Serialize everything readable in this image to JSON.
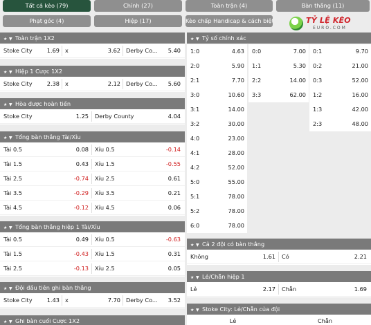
{
  "tabs": [
    {
      "label": "Tất cả kèo (79)",
      "active": true
    },
    {
      "label": "Chính (27)"
    },
    {
      "label": "Toàn trận (4)"
    },
    {
      "label": "Bàn thắng (11)"
    },
    {
      "label": "Phạt góc (4)"
    },
    {
      "label": "Hiệp (17)"
    },
    {
      "label": "Kèo chấp Handicap & cách biệt (3)"
    }
  ],
  "logo": {
    "name": "TỶ LỆ KÈO",
    "sub": "EURO.COM"
  },
  "left": {
    "fulltime_1x2": {
      "title": "Toàn trận 1X2",
      "home": "Stoke City",
      "home_odds": "1.69",
      "draw": "x",
      "draw_odds": "3.62",
      "away": "Derby Co...",
      "away_odds": "5.40"
    },
    "half1_1x2": {
      "title": "Hiệp 1 Cược 1X2",
      "home": "Stoke City",
      "home_odds": "2.38",
      "draw": "x",
      "draw_odds": "2.12",
      "away": "Derby Co...",
      "away_odds": "5.60"
    },
    "dnb": {
      "title": "Hòa được hoàn tiền",
      "home": "Stoke City",
      "home_odds": "1.25",
      "away": "Derby County",
      "away_odds": "4.04"
    },
    "total_goals": {
      "title": "Tổng bàn thắng Tài/Xỉu",
      "rows": [
        {
          "over": "Tài 0.5",
          "ov": "0.08",
          "under": "Xỉu 0.5",
          "uv": "-0.14"
        },
        {
          "over": "Tài 1.5",
          "ov": "0.43",
          "under": "Xỉu 1.5",
          "uv": "-0.55"
        },
        {
          "over": "Tài 2.5",
          "ov": "-0.74",
          "under": "Xỉu 2.5",
          "uv": "0.61"
        },
        {
          "over": "Tài 3.5",
          "ov": "-0.29",
          "under": "Xỉu 3.5",
          "uv": "0.21"
        },
        {
          "over": "Tài 4.5",
          "ov": "-0.12",
          "under": "Xỉu 4.5",
          "uv": "0.06"
        }
      ]
    },
    "total_goals_h1": {
      "title": "Tổng bàn thắng hiệp 1 Tài/Xỉu",
      "rows": [
        {
          "over": "Tài 0.5",
          "ov": "0.49",
          "under": "Xỉu 0.5",
          "uv": "-0.63"
        },
        {
          "over": "Tài 1.5",
          "ov": "-0.43",
          "under": "Xỉu 1.5",
          "uv": "0.31"
        },
        {
          "over": "Tài 2.5",
          "ov": "-0.13",
          "under": "Xỉu 2.5",
          "uv": "0.05"
        }
      ]
    },
    "first_goal": {
      "title": "Đội đầu tiên ghi bàn thắng",
      "home": "Stoke City",
      "home_odds": "1.43",
      "draw": "x",
      "draw_odds": "7.70",
      "away": "Derby Co...",
      "away_odds": "3.52"
    },
    "last_goal": {
      "title": "Ghi bàn cuối Cược 1X2"
    }
  },
  "right": {
    "correct_score": {
      "title": "Tỷ số chính xác",
      "col1": [
        {
          "s": "1:0",
          "v": "4.63"
        },
        {
          "s": "2:0",
          "v": "5.90"
        },
        {
          "s": "2:1",
          "v": "7.70"
        },
        {
          "s": "3:0",
          "v": "10.60"
        },
        {
          "s": "3:1",
          "v": "14.00"
        },
        {
          "s": "3:2",
          "v": "30.00"
        },
        {
          "s": "4:0",
          "v": "23.00"
        },
        {
          "s": "4:1",
          "v": "28.00"
        },
        {
          "s": "4:2",
          "v": "52.00"
        },
        {
          "s": "5:0",
          "v": "55.00"
        },
        {
          "s": "5:1",
          "v": "78.00"
        },
        {
          "s": "5:2",
          "v": "78.00"
        },
        {
          "s": "6:0",
          "v": "78.00"
        }
      ],
      "col2": [
        {
          "s": "0:0",
          "v": "7.00"
        },
        {
          "s": "1:1",
          "v": "5.30"
        },
        {
          "s": "2:2",
          "v": "14.00"
        },
        {
          "s": "3:3",
          "v": "62.00"
        }
      ],
      "col3": [
        {
          "s": "0:1",
          "v": "9.70"
        },
        {
          "s": "0:2",
          "v": "21.00"
        },
        {
          "s": "0:3",
          "v": "52.00"
        },
        {
          "s": "1:2",
          "v": "16.00"
        },
        {
          "s": "1:3",
          "v": "42.00"
        },
        {
          "s": "2:3",
          "v": "48.00"
        }
      ]
    },
    "btts": {
      "title": "Cả 2 đội có bàn thắng",
      "no": "Không",
      "no_odds": "1.61",
      "yes": "Có",
      "yes_odds": "2.21"
    },
    "odd_even_h1": {
      "title": "Lẻ/Chẵn hiệp 1",
      "odd": "Lẻ",
      "odd_odds": "2.17",
      "even": "Chẵn",
      "even_odds": "1.69"
    },
    "stoke_odd_even": {
      "title": "Stoke City: Lẻ/Chẵn của đội",
      "odd": "Lẻ",
      "even": "Chẵn"
    }
  },
  "colors": {
    "active_tab": "#27543d",
    "tab": "#8f8f8f",
    "header": "#7a7a7a",
    "negative": "#d01c1c"
  }
}
